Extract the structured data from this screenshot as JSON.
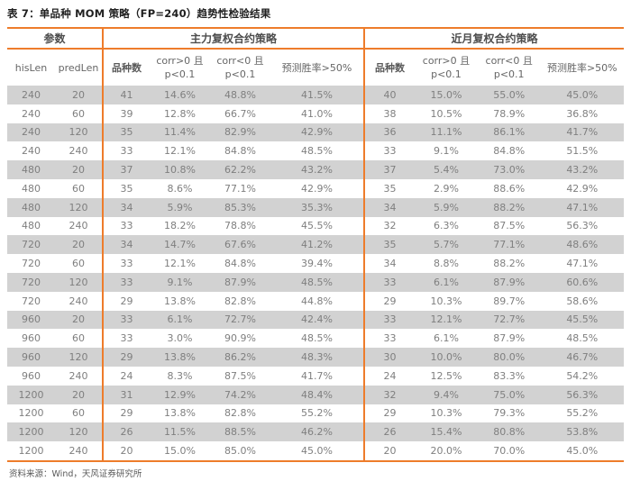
{
  "title": "表 7：单品种 MOM 策略（FP=240）趋势性检验结果",
  "colors": {
    "accent_orange": "#ee7c2b",
    "row_stripe_gray": "#d2d2d2",
    "data_text_gray": "#7f7f7f",
    "header_text_gray": "#4d4d4d"
  },
  "table": {
    "group_headers": [
      {
        "label": "参数",
        "colspan": 2
      },
      {
        "label": "主力复权合约策略",
        "colspan": 4
      },
      {
        "label": "近月复权合约策略",
        "colspan": 4
      }
    ],
    "column_headers": [
      [
        "hisLen"
      ],
      [
        "predLen"
      ],
      [
        "品种数"
      ],
      [
        "corr>0 且",
        "p<0.1"
      ],
      [
        "corr<0 且",
        "p<0.1"
      ],
      [
        "预测胜率>50%"
      ],
      [
        "品种数"
      ],
      [
        "corr>0 且",
        "p<0.1"
      ],
      [
        "corr<0 且",
        "p<0.1"
      ],
      [
        "预测胜率>50%"
      ]
    ],
    "rows": [
      [
        "240",
        "20",
        "41",
        "14.6%",
        "48.8%",
        "41.5%",
        "40",
        "15.0%",
        "55.0%",
        "45.0%"
      ],
      [
        "240",
        "60",
        "39",
        "12.8%",
        "66.7%",
        "41.0%",
        "38",
        "10.5%",
        "78.9%",
        "36.8%"
      ],
      [
        "240",
        "120",
        "35",
        "11.4%",
        "82.9%",
        "42.9%",
        "36",
        "11.1%",
        "86.1%",
        "41.7%"
      ],
      [
        "240",
        "240",
        "33",
        "12.1%",
        "84.8%",
        "48.5%",
        "33",
        "9.1%",
        "84.8%",
        "51.5%"
      ],
      [
        "480",
        "20",
        "37",
        "10.8%",
        "62.2%",
        "43.2%",
        "37",
        "5.4%",
        "73.0%",
        "43.2%"
      ],
      [
        "480",
        "60",
        "35",
        "8.6%",
        "77.1%",
        "42.9%",
        "35",
        "2.9%",
        "88.6%",
        "42.9%"
      ],
      [
        "480",
        "120",
        "34",
        "5.9%",
        "85.3%",
        "35.3%",
        "34",
        "5.9%",
        "88.2%",
        "47.1%"
      ],
      [
        "480",
        "240",
        "33",
        "18.2%",
        "78.8%",
        "45.5%",
        "32",
        "6.3%",
        "87.5%",
        "56.3%"
      ],
      [
        "720",
        "20",
        "34",
        "14.7%",
        "67.6%",
        "41.2%",
        "35",
        "5.7%",
        "77.1%",
        "48.6%"
      ],
      [
        "720",
        "60",
        "33",
        "12.1%",
        "84.8%",
        "39.4%",
        "34",
        "8.8%",
        "88.2%",
        "47.1%"
      ],
      [
        "720",
        "120",
        "33",
        "9.1%",
        "87.9%",
        "48.5%",
        "33",
        "6.1%",
        "87.9%",
        "60.6%"
      ],
      [
        "720",
        "240",
        "29",
        "13.8%",
        "82.8%",
        "44.8%",
        "29",
        "10.3%",
        "89.7%",
        "58.6%"
      ],
      [
        "960",
        "20",
        "33",
        "6.1%",
        "72.7%",
        "42.4%",
        "33",
        "12.1%",
        "72.7%",
        "45.5%"
      ],
      [
        "960",
        "60",
        "33",
        "3.0%",
        "90.9%",
        "48.5%",
        "33",
        "6.1%",
        "87.9%",
        "48.5%"
      ],
      [
        "960",
        "120",
        "29",
        "13.8%",
        "86.2%",
        "48.3%",
        "30",
        "10.0%",
        "80.0%",
        "46.7%"
      ],
      [
        "960",
        "240",
        "24",
        "8.3%",
        "87.5%",
        "41.7%",
        "24",
        "12.5%",
        "83.3%",
        "54.2%"
      ],
      [
        "1200",
        "20",
        "31",
        "12.9%",
        "74.2%",
        "48.4%",
        "32",
        "9.4%",
        "75.0%",
        "56.3%"
      ],
      [
        "1200",
        "60",
        "29",
        "13.8%",
        "82.8%",
        "55.2%",
        "29",
        "10.3%",
        "79.3%",
        "55.2%"
      ],
      [
        "1200",
        "120",
        "26",
        "11.5%",
        "88.5%",
        "46.2%",
        "26",
        "15.4%",
        "80.8%",
        "53.8%"
      ],
      [
        "1200",
        "240",
        "20",
        "15.0%",
        "85.0%",
        "45.0%",
        "20",
        "20.0%",
        "70.0%",
        "45.0%"
      ]
    ]
  },
  "footer": {
    "source_label": "资料来源：Wind，天风证券研究所"
  }
}
